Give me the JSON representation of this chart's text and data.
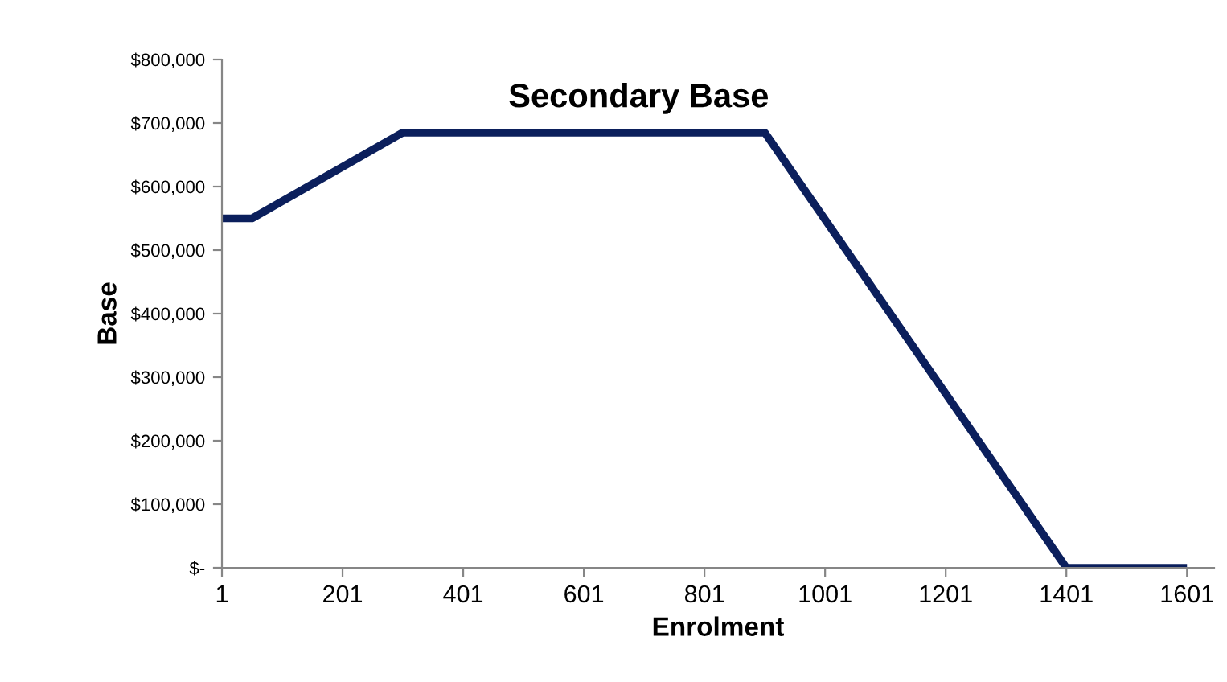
{
  "chart_data": {
    "type": "line",
    "title": "Secondary Base",
    "xlabel": "Enrolment",
    "ylabel": "Base",
    "x": [
      1,
      51,
      301,
      901,
      1401,
      1601
    ],
    "series": [
      {
        "color": "#0b1f5c",
        "values": [
          550000,
          550000,
          685000,
          685000,
          0,
          0
        ]
      }
    ],
    "xlim": [
      1,
      1646
    ],
    "xticks": [
      1,
      201,
      401,
      601,
      801,
      1001,
      1201,
      1401,
      1601
    ],
    "ylim": [
      0,
      800000
    ],
    "yticks": [
      {
        "value": 0,
        "label": "$-"
      },
      {
        "value": 100000,
        "label": "$100,000"
      },
      {
        "value": 200000,
        "label": "$200,000"
      },
      {
        "value": 300000,
        "label": "$300,000"
      },
      {
        "value": 400000,
        "label": "$400,000"
      },
      {
        "value": 500000,
        "label": "$500,000"
      },
      {
        "value": 600000,
        "label": "$600,000"
      },
      {
        "value": 700000,
        "label": "$700,000"
      },
      {
        "value": 800000,
        "label": "$800,000"
      }
    ],
    "grid": false,
    "legend": false,
    "marker": "none",
    "line_style": "solid"
  }
}
